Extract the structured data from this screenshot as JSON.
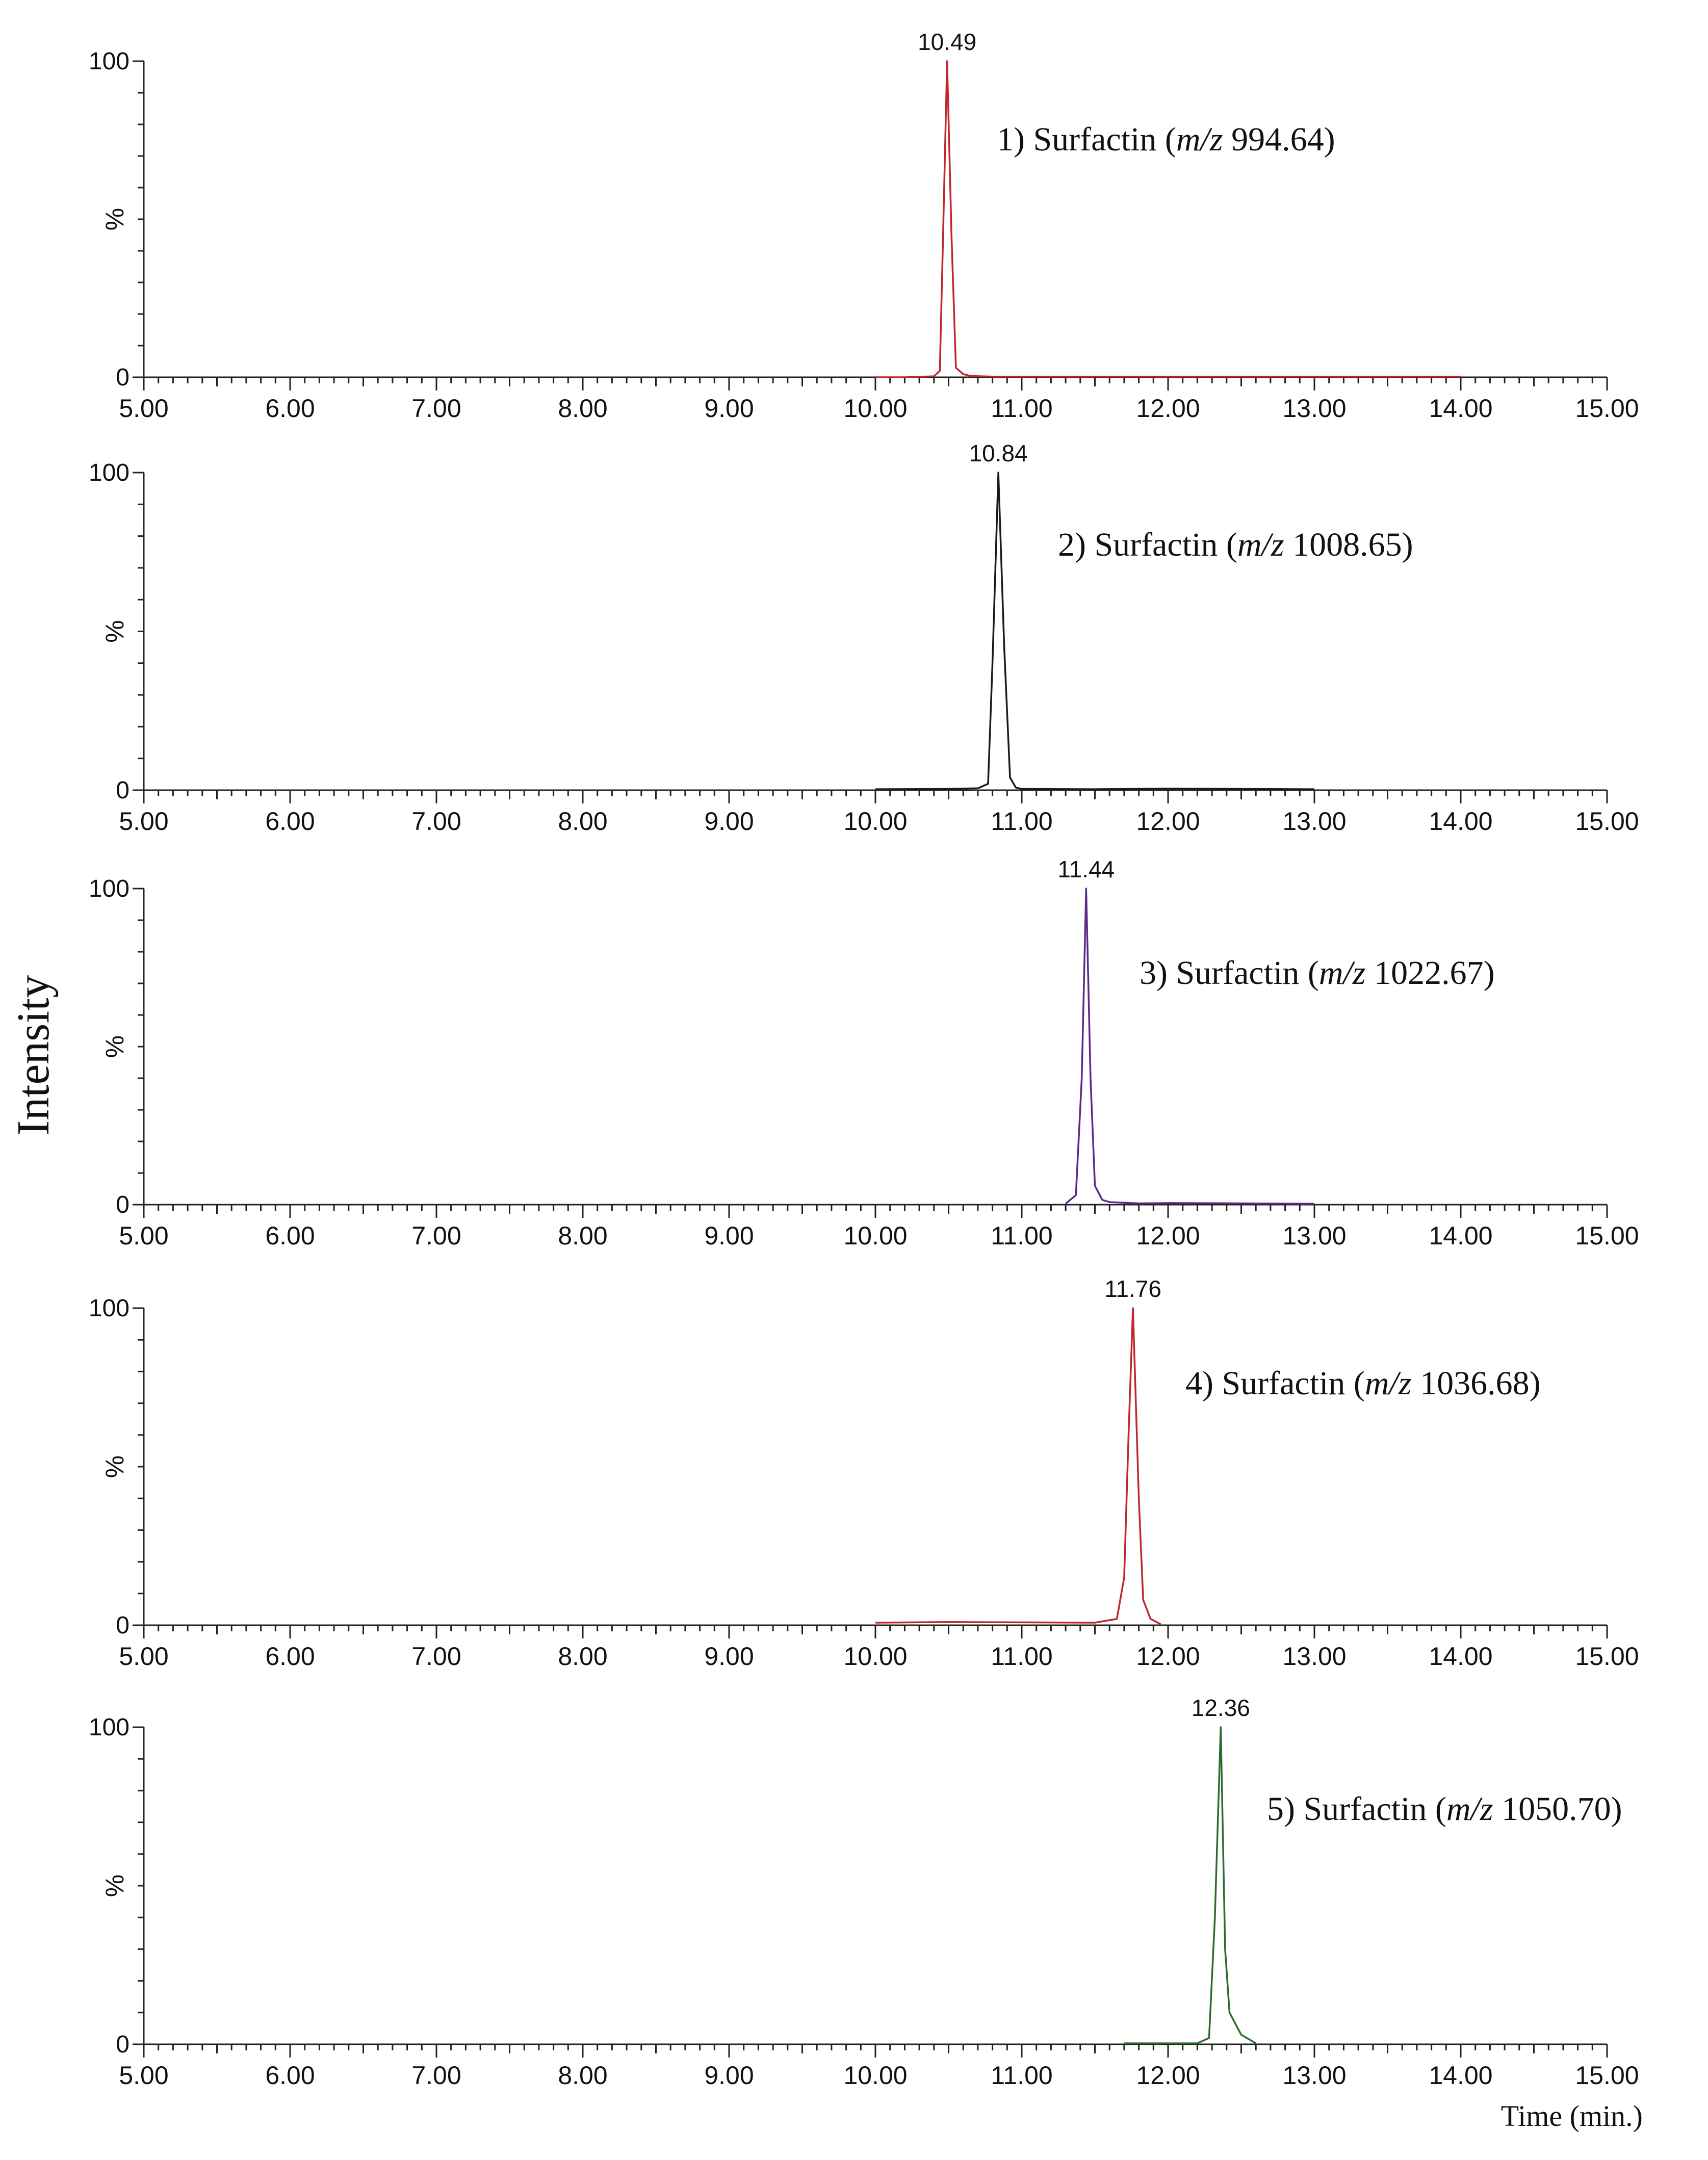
{
  "chart_data": {
    "type": "line",
    "ylabel": "Intensity",
    "xlabel": "Time (min.)",
    "xlim": [
      5.0,
      15.0
    ],
    "x_ticks": [
      "5.00",
      "6.00",
      "7.00",
      "8.00",
      "9.00",
      "10.00",
      "11.00",
      "12.00",
      "13.00",
      "14.00",
      "15.00"
    ],
    "y_ticks": [
      "0",
      "100"
    ],
    "y_unit_label": "%",
    "ylim": [
      0,
      100
    ],
    "panels": [
      {
        "annotation": {
          "prefix": "1) Surfactin (",
          "mz": "m/z",
          "value": " 994.64)"
        },
        "peak_label": "10.49",
        "color": "#c0272d",
        "series": {
          "x": [
            10.0,
            10.2,
            10.4,
            10.44,
            10.46,
            10.49,
            10.52,
            10.55,
            10.6,
            10.65,
            10.8,
            11.0,
            12.0,
            13.0,
            14.0
          ],
          "y": [
            0,
            0,
            0.3,
            2,
            40,
            100,
            45,
            3,
            1,
            0.4,
            0.2,
            0.2,
            0.2,
            0.2,
            0.2
          ]
        }
      },
      {
        "annotation": {
          "prefix": "2) Surfactin (",
          "mz": "m/z",
          "value": " 1008.65)"
        },
        "peak_label": "10.84",
        "color": "#1a1a1a",
        "series": {
          "x": [
            10.0,
            10.5,
            10.7,
            10.77,
            10.8,
            10.84,
            10.88,
            10.92,
            10.96,
            11.0,
            11.5,
            12.0,
            13.0
          ],
          "y": [
            0.3,
            0.4,
            0.6,
            2,
            40,
            100,
            45,
            4,
            0.8,
            0.4,
            0.3,
            0.5,
            0.3
          ]
        }
      },
      {
        "annotation": {
          "prefix": "3) Surfactin (",
          "mz": "m/z",
          "value": " 1022.67)"
        },
        "peak_label": "11.44",
        "color": "#5b2a86",
        "series": {
          "x": [
            11.3,
            11.37,
            11.41,
            11.44,
            11.47,
            11.5,
            11.55,
            11.6,
            11.8,
            12.0,
            12.5,
            13.0
          ],
          "y": [
            0.3,
            3,
            40,
            100,
            40,
            6,
            1.5,
            0.8,
            0.4,
            0.5,
            0.4,
            0.3
          ]
        }
      },
      {
        "annotation": {
          "prefix": "4) Surfactin (",
          "mz": "m/z",
          "value": " 1036.68)"
        },
        "peak_label": "11.76",
        "color": "#c0272d",
        "series": {
          "x": [
            10.0,
            10.5,
            11.0,
            11.5,
            11.65,
            11.7,
            11.73,
            11.76,
            11.8,
            11.83,
            11.88,
            11.95
          ],
          "y": [
            0.8,
            1.0,
            0.9,
            0.8,
            2,
            15,
            60,
            100,
            40,
            8,
            2,
            0.3
          ]
        }
      },
      {
        "annotation": {
          "prefix": "5) Surfactin (",
          "mz": "m/z",
          "value": " 1050.70)"
        },
        "peak_label": "12.36",
        "color": "#2e6b2e",
        "series": {
          "x": [
            11.7,
            11.8,
            12.2,
            12.28,
            12.32,
            12.36,
            12.39,
            12.42,
            12.5,
            12.6
          ],
          "y": [
            0.3,
            0.3,
            0.3,
            2,
            40,
            100,
            30,
            10,
            3,
            0.3
          ]
        }
      }
    ]
  }
}
